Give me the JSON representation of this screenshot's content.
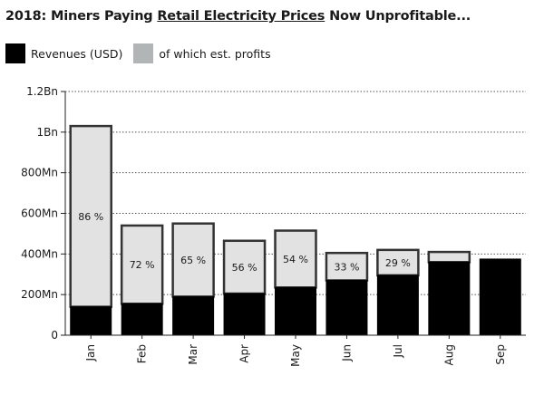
{
  "title": {
    "prefix": "2018: Miners Paying ",
    "underlined": "Retail Electricity Prices",
    "suffix": " Now Unprofitable..."
  },
  "legend": [
    {
      "label": "Revenues (USD)",
      "color": "#000000"
    },
    {
      "label": "of which est. profits",
      "color": "#b1b5b5"
    }
  ],
  "chart_data": {
    "type": "bar",
    "categories": [
      "Jan",
      "Feb",
      "Mar",
      "Apr",
      "May",
      "Jun",
      "Jul",
      "Aug",
      "Sep"
    ],
    "series": [
      {
        "name": "Revenues (USD)",
        "values": [
          1030,
          540,
          550,
          465,
          515,
          405,
          420,
          410,
          375
        ]
      },
      {
        "name": "of which est. profits",
        "values": [
          890,
          385,
          360,
          260,
          280,
          135,
          125,
          50,
          0
        ]
      }
    ],
    "profit_pct_labels": [
      "86 %",
      "72 %",
      "65 %",
      "56 %",
      "54 %",
      "33 %",
      "29 %",
      "",
      ""
    ],
    "y_ticks": [
      0,
      200,
      400,
      600,
      800,
      1000,
      1200
    ],
    "y_tick_labels": [
      "0",
      "200Mn",
      "400Mn",
      "600Mn",
      "800Mn",
      "1Bn",
      "1.2Bn"
    ],
    "ylim": [
      0,
      1200
    ],
    "grid": "horizontal dotted",
    "legend_position": "top-left",
    "colors": {
      "cost": "#000000",
      "profit": "#e2e2e2",
      "outline": "#333333"
    }
  }
}
